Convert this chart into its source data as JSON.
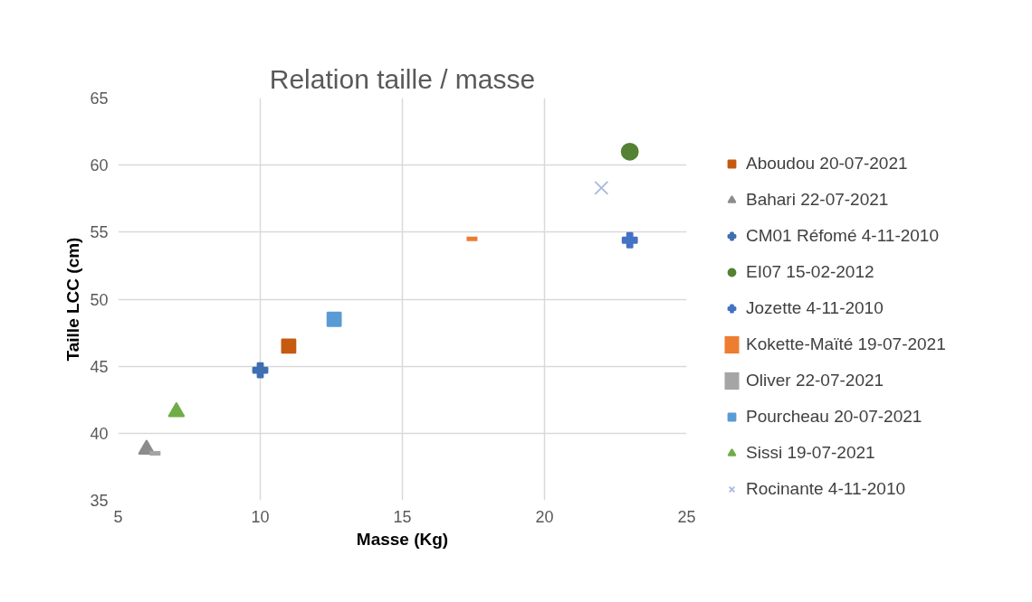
{
  "chart_data": {
    "type": "scatter",
    "title": "Relation taille / masse",
    "xlabel": "Masse (Kg)",
    "ylabel": "Taille LCC (cm)",
    "xlim": [
      5,
      25
    ],
    "xticks": [
      5,
      10,
      15,
      20,
      25
    ],
    "ylim": [
      35,
      65
    ],
    "yticks": [
      35,
      40,
      45,
      50,
      55,
      60,
      65
    ],
    "grid": true,
    "legend": "right",
    "series": [
      {
        "name": "Aboudou 20-07-2021",
        "color": "#c55a11",
        "marker": "square",
        "x": [
          11
        ],
        "values": [
          46.5
        ]
      },
      {
        "name": "Bahari 22-07-2021",
        "color": "#8c8c8c",
        "marker": "triangle",
        "x": [
          6
        ],
        "values": [
          38.8
        ]
      },
      {
        "name": "CM01 Réfomé 4-11-2010",
        "color": "#3f6fb0",
        "marker": "cross",
        "x": [
          10
        ],
        "values": [
          44.7
        ]
      },
      {
        "name": "EI07 15-02-2012",
        "color": "#548235",
        "marker": "circle",
        "x": [
          23
        ],
        "values": [
          61
        ]
      },
      {
        "name": "Jozette 4-11-2010",
        "color": "#4472c4",
        "marker": "cross",
        "x": [
          23
        ],
        "values": [
          54.4
        ]
      },
      {
        "name": "Kokette-Maïté 19-07-2021",
        "color": "#ed7d31",
        "x": [
          17.45
        ],
        "values": [
          54.5
        ]
      },
      {
        "name": "Oliver 22-07-2021",
        "color": "#a5a5a5",
        "x": [
          6.3
        ],
        "values": [
          38.5
        ]
      },
      {
        "name": "Pourcheau 20-07-2021",
        "color": "#5b9bd5",
        "marker": "square",
        "x": [
          12.6
        ],
        "values": [
          48.5
        ]
      },
      {
        "name": "Sissi 19-07-2021",
        "color": "#70ad47",
        "marker": "triangle",
        "x": [
          7.05
        ],
        "values": [
          41.6
        ]
      },
      {
        "name": "Rocinante 4-11-2010",
        "color": "#a9b8e0",
        "marker": "x",
        "x": [
          22
        ],
        "values": [
          58.3
        ]
      }
    ]
  }
}
